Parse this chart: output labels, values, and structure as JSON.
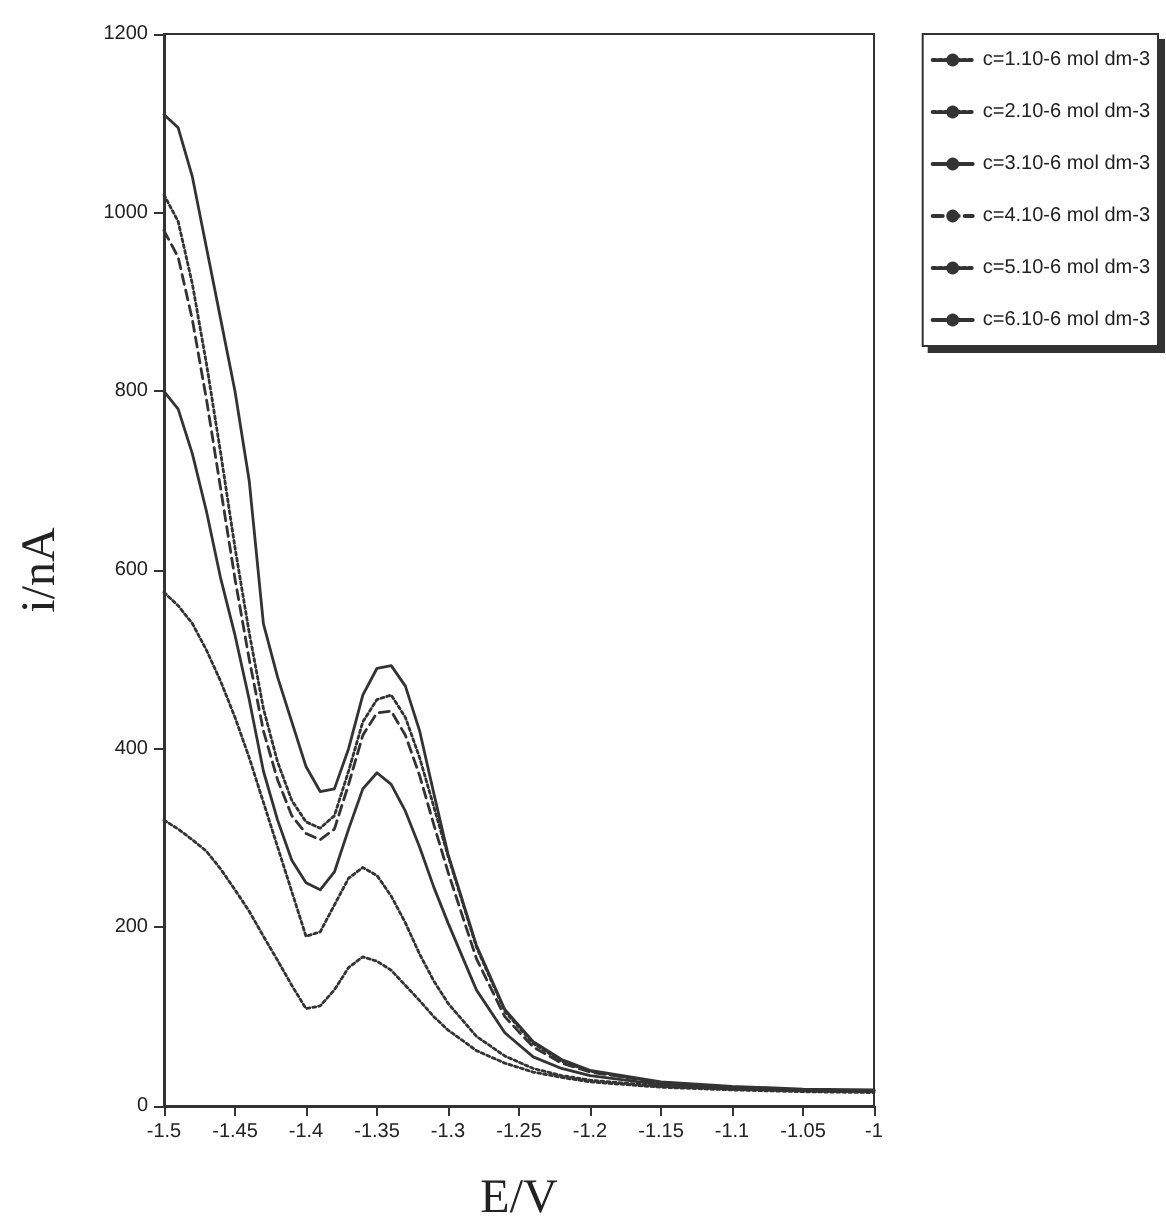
{
  "chart_data": {
    "type": "line",
    "xlabel": "E/V",
    "ylabel": "i/nA",
    "x": [
      -1.5,
      -1.49,
      -1.48,
      -1.47,
      -1.46,
      -1.45,
      -1.44,
      -1.43,
      -1.42,
      -1.41,
      -1.4,
      -1.39,
      -1.38,
      -1.37,
      -1.36,
      -1.35,
      -1.34,
      -1.33,
      -1.32,
      -1.31,
      -1.3,
      -1.28,
      -1.26,
      -1.24,
      -1.22,
      -1.2,
      -1.15,
      -1.1,
      -1.05,
      -1.0
    ],
    "series": [
      {
        "name": "c=1.10-6 mol dm-3",
        "color": "#333333",
        "line_style": "dotted",
        "values": [
          320,
          310,
          298,
          285,
          265,
          242,
          218,
          190,
          163,
          135,
          109,
          112,
          130,
          155,
          167,
          162,
          152,
          135,
          118,
          100,
          85,
          62,
          48,
          38,
          32,
          27,
          21,
          18,
          16,
          15
        ]
      },
      {
        "name": "c=2.10-6 mol dm-3",
        "color": "#333333",
        "line_style": "dotted",
        "values": [
          575,
          560,
          540,
          510,
          475,
          435,
          390,
          340,
          290,
          240,
          190,
          195,
          225,
          255,
          267,
          258,
          235,
          205,
          170,
          140,
          115,
          78,
          56,
          42,
          34,
          29,
          22,
          19,
          17,
          16
        ]
      },
      {
        "name": "c=3.10-6 mol dm-3",
        "color": "#333333",
        "line_style": "solid",
        "values": [
          800,
          780,
          730,
          665,
          590,
          527,
          455,
          375,
          320,
          275,
          250,
          242,
          262,
          310,
          355,
          373,
          360,
          330,
          290,
          245,
          205,
          130,
          82,
          55,
          42,
          34,
          24,
          20,
          18,
          17
        ]
      },
      {
        "name": "c=4.10-6 mol dm-3",
        "color": "#333333",
        "line_style": "dashed",
        "values": [
          980,
          950,
          880,
          790,
          690,
          590,
          500,
          420,
          365,
          325,
          305,
          298,
          310,
          360,
          415,
          440,
          442,
          415,
          370,
          315,
          262,
          165,
          100,
          66,
          48,
          38,
          26,
          21,
          18,
          17
        ]
      },
      {
        "name": "c=5.10-6 mol dm-3",
        "color": "#333333",
        "line_style": "dotted",
        "values": [
          1020,
          990,
          920,
          830,
          730,
          625,
          530,
          445,
          385,
          342,
          318,
          311,
          325,
          375,
          430,
          455,
          460,
          435,
          390,
          335,
          280,
          178,
          106,
          70,
          50,
          39,
          26,
          21,
          18,
          17
        ]
      },
      {
        "name": "c=6.10-6 mol dm-3",
        "color": "#333333",
        "line_style": "solid",
        "values": [
          1110,
          1095,
          1040,
          960,
          880,
          800,
          700,
          540,
          480,
          430,
          380,
          352,
          355,
          400,
          460,
          490,
          493,
          470,
          420,
          350,
          282,
          180,
          108,
          72,
          52,
          40,
          27,
          22,
          19,
          18
        ]
      }
    ],
    "xlim": [
      -1.5,
      -1.0
    ],
    "xticks": [
      -1.5,
      -1.45,
      -1.4,
      -1.35,
      -1.3,
      -1.25,
      -1.2,
      -1.15,
      -1.1,
      -1.05,
      -1
    ],
    "ylim": [
      0,
      1200
    ],
    "yticks": [
      0,
      200,
      400,
      600,
      800,
      1000,
      1200
    ],
    "grid": false,
    "legend": "right",
    "marker": "none"
  }
}
